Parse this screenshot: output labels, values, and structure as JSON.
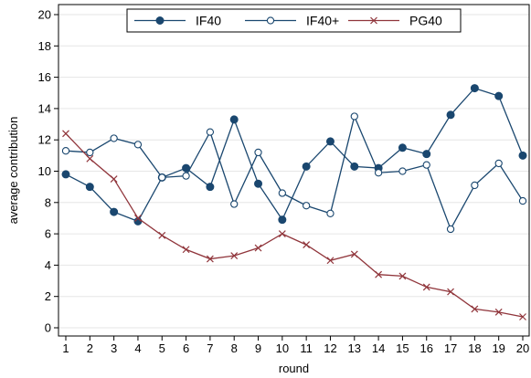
{
  "chart_data": {
    "type": "line",
    "xlabel": "round",
    "ylabel": "average contribution",
    "x": [
      1,
      2,
      3,
      4,
      5,
      6,
      7,
      8,
      9,
      10,
      11,
      12,
      13,
      14,
      15,
      16,
      17,
      18,
      19,
      20
    ],
    "xlim": [
      1,
      20
    ],
    "ylim": [
      0,
      20
    ],
    "yticks": [
      0,
      2,
      4,
      6,
      8,
      10,
      12,
      14,
      16,
      18,
      20
    ],
    "grid": "horizontal",
    "legend_position": "top-center",
    "series": [
      {
        "name": "IF40",
        "color": "#1a476f",
        "marker": "filled-circle",
        "values": [
          9.8,
          9.0,
          7.4,
          6.8,
          9.6,
          10.2,
          9.0,
          13.3,
          9.2,
          6.9,
          10.3,
          11.9,
          10.3,
          10.2,
          11.5,
          11.1,
          13.6,
          15.3,
          14.8,
          11.0
        ]
      },
      {
        "name": "IF40+",
        "color": "#1a476f",
        "marker": "hollow-circle",
        "values": [
          11.3,
          11.2,
          12.1,
          11.7,
          9.6,
          9.7,
          12.5,
          7.9,
          11.2,
          8.6,
          7.8,
          7.3,
          13.5,
          9.9,
          10.0,
          10.4,
          6.3,
          9.1,
          10.5,
          8.1
        ]
      },
      {
        "name": "PG40",
        "color": "#90353b",
        "marker": "x",
        "values": [
          12.4,
          10.8,
          9.5,
          7.0,
          5.9,
          5.0,
          4.4,
          4.6,
          5.1,
          6.0,
          5.3,
          4.3,
          4.7,
          3.4,
          3.3,
          2.6,
          2.3,
          1.2,
          1.0,
          0.7
        ]
      }
    ]
  }
}
